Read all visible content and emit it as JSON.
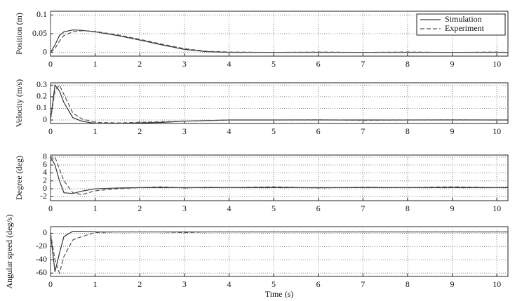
{
  "chart_data": [
    {
      "type": "line",
      "ylabel": "Position (m)",
      "legend": "upper right",
      "grid": true,
      "xlim": [
        0,
        10.25
      ],
      "xticks": [
        0,
        1,
        2,
        3,
        4,
        5,
        6,
        7,
        8,
        9,
        10
      ],
      "ylim": [
        -0.01,
        0.11
      ],
      "yticks": [
        0,
        0.05,
        0.1
      ],
      "x": [
        0,
        0.1,
        0.2,
        0.3,
        0.5,
        0.7,
        1,
        1.5,
        2,
        2.5,
        3,
        3.5,
        4,
        5,
        6,
        7,
        8,
        9,
        10,
        10.25
      ],
      "series": [
        {
          "name": "Simulation",
          "color": "#333333",
          "style": "solid",
          "values": [
            0,
            0.02,
            0.045,
            0.055,
            0.06,
            0.059,
            0.055,
            0.045,
            0.033,
            0.02,
            0.008,
            0.002,
            0,
            0,
            0,
            0,
            0,
            0,
            0,
            0
          ]
        },
        {
          "name": "Experiment",
          "color": "#555555",
          "style": "dash",
          "values": [
            0,
            0.01,
            0.03,
            0.045,
            0.055,
            0.058,
            0.056,
            0.047,
            0.035,
            0.022,
            0.01,
            0.003,
            0.001,
            0,
            0.001,
            0,
            0.001,
            0,
            0.001,
            0
          ]
        }
      ]
    },
    {
      "type": "line",
      "ylabel": "Velocity (m/s)",
      "grid": true,
      "xlim": [
        0,
        10.25
      ],
      "xticks": [
        0,
        1,
        2,
        3,
        4,
        5,
        6,
        7,
        8,
        9,
        10
      ],
      "ylim": [
        -0.03,
        0.32
      ],
      "yticks": [
        0,
        0.1,
        0.2,
        0.3
      ],
      "x": [
        0,
        0.1,
        0.2,
        0.3,
        0.5,
        0.7,
        1,
        1.5,
        2,
        2.5,
        3,
        3.5,
        4,
        5,
        6,
        7,
        8,
        9,
        10,
        10.25
      ],
      "series": [
        {
          "color": "#333333",
          "style": "solid",
          "values": [
            0,
            0.3,
            0.25,
            0.15,
            0.02,
            -0.01,
            -0.03,
            -0.03,
            -0.025,
            -0.02,
            -0.01,
            -0.005,
            0,
            0,
            0,
            0,
            0,
            0,
            0,
            0
          ]
        },
        {
          "color": "#555555",
          "style": "dash",
          "values": [
            0,
            0.25,
            0.3,
            0.22,
            0.06,
            0.01,
            -0.02,
            -0.025,
            -0.02,
            -0.015,
            -0.01,
            -0.005,
            0,
            0,
            0.002,
            -0.003,
            0,
            0.002,
            0,
            0
          ]
        }
      ]
    },
    {
      "type": "line",
      "ylabel": "Degree (deg)",
      "grid": true,
      "xlim": [
        0,
        10.25
      ],
      "xticks": [
        0,
        1,
        2,
        3,
        4,
        5,
        6,
        7,
        8,
        9,
        10
      ],
      "ylim": [
        -3,
        8.5
      ],
      "yticks": [
        -2,
        0,
        2,
        4,
        6,
        8
      ],
      "x": [
        0,
        0.1,
        0.2,
        0.3,
        0.5,
        0.7,
        1,
        1.5,
        2,
        2.5,
        3,
        3.5,
        4,
        5,
        6,
        7,
        8,
        9,
        10,
        10.25
      ],
      "series": [
        {
          "color": "#333333",
          "style": "solid",
          "values": [
            8,
            6,
            2,
            -1,
            -1.2,
            -0.6,
            0,
            0.2,
            0.3,
            0.3,
            0.3,
            0.3,
            0.3,
            0.3,
            0.3,
            0.3,
            0.3,
            0.3,
            0.3,
            0.3
          ]
        },
        {
          "color": "#555555",
          "style": "dash",
          "values": [
            7,
            8,
            5,
            2,
            -1,
            -1.5,
            -0.5,
            0,
            0.3,
            0.5,
            0.2,
            0.4,
            0.3,
            0.5,
            0.2,
            0.4,
            0.3,
            0.5,
            0.3,
            0.4
          ]
        }
      ]
    },
    {
      "type": "line",
      "ylabel": "Angular speed (deg/s)",
      "xlabel": "Time (s)",
      "grid": true,
      "xlim": [
        0,
        10.25
      ],
      "xticks": [
        0,
        1,
        2,
        3,
        4,
        5,
        6,
        7,
        8,
        9,
        10
      ],
      "ylim": [
        -65,
        10
      ],
      "yticks": [
        -60,
        -40,
        -20,
        0
      ],
      "x": [
        0,
        0.1,
        0.2,
        0.3,
        0.5,
        0.7,
        1,
        1.5,
        2,
        2.5,
        3,
        3.5,
        4,
        5,
        6,
        7,
        8,
        9,
        10,
        10.25
      ],
      "series": [
        {
          "color": "#333333",
          "style": "solid",
          "values": [
            0,
            -58,
            -30,
            -5,
            3,
            3,
            2,
            2,
            2,
            2,
            2,
            2,
            2,
            2,
            2,
            2,
            2,
            2,
            2,
            2
          ]
        },
        {
          "color": "#555555",
          "style": "dash",
          "values": [
            0,
            -40,
            -60,
            -35,
            -10,
            -5,
            1,
            2,
            2,
            2,
            1,
            2,
            2,
            2,
            2,
            2,
            2,
            2,
            2,
            2
          ]
        }
      ]
    }
  ]
}
